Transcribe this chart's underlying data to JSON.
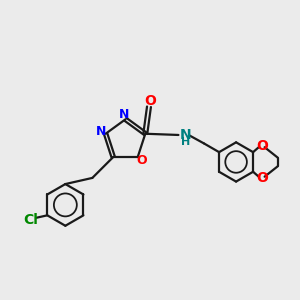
{
  "background_color": "#ebebeb",
  "bond_color": "#1a1a1a",
  "N_color": "#0000ff",
  "O_color": "#ff0000",
  "Cl_color": "#008800",
  "NH_color": "#008080",
  "lw": 1.6,
  "figsize": [
    3.0,
    3.0
  ],
  "dpi": 100,
  "xlim": [
    0,
    12
  ],
  "ylim": [
    0,
    12
  ]
}
